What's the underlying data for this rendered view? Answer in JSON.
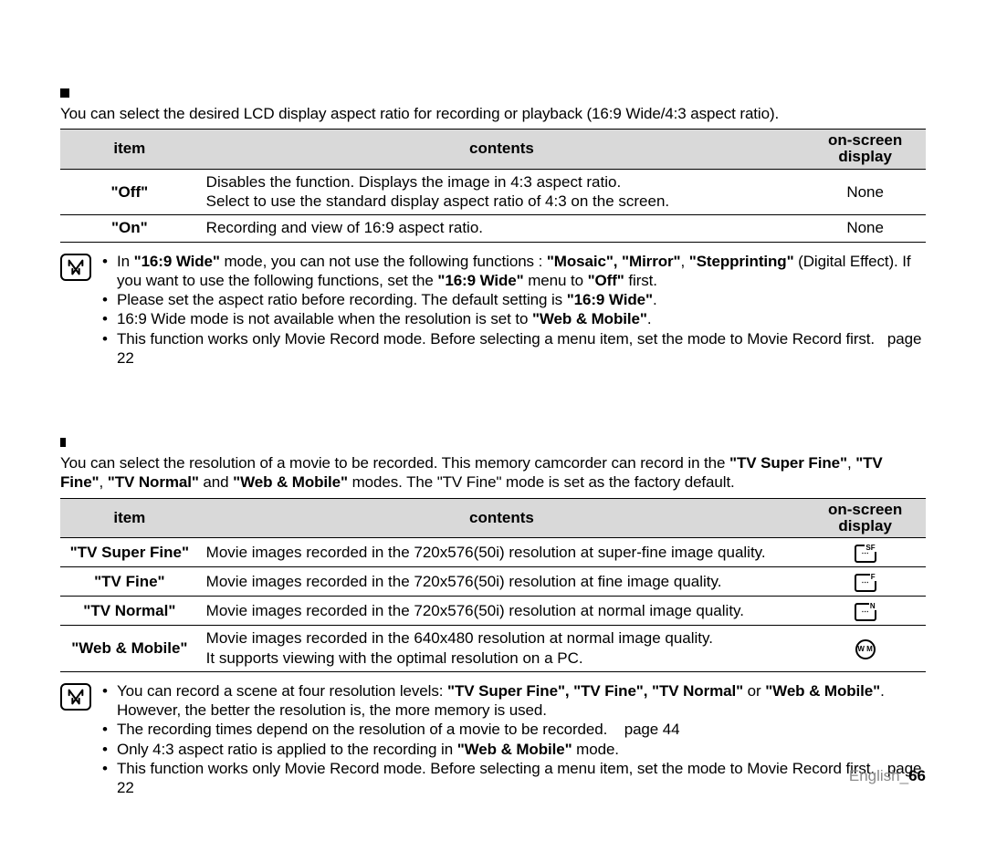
{
  "section1": {
    "intro": "You can select the desired LCD display aspect ratio for recording or playback (16:9 Wide/4:3 aspect ratio).",
    "headers": {
      "item": "item",
      "contents": "contents",
      "osd": "on-screen display"
    },
    "rows": [
      {
        "item": "\"Off\"",
        "contents": "Disables the function. Displays the image in 4:3 aspect ratio.\nSelect to use the standard display aspect ratio of 4:3 on the screen.",
        "osd": "None"
      },
      {
        "item": "\"On\"",
        "contents": "Recording and view of 16:9 aspect ratio.",
        "osd": "None"
      }
    ],
    "notes": [
      "In <b>\"16:9 Wide\"</b> mode, you can not use the following functions : <b>\"Mosaic\", \"Mirror\"</b>, <b>\"Stepprinting\"</b> (Digital Effect). If you want to use the following functions, set the <b>\"16:9 Wide\"</b> menu to <b>\"Off\"</b> first.",
      "Please set the aspect ratio before recording. The default setting is <b>\"16:9 Wide\"</b>.",
      "16:9 Wide mode is not available when the resolution is set to <b>\"Web & Mobile\"</b>.",
      "This function works only Movie Record mode. Before selecting a menu item, set the mode to Movie Record first.   page 22"
    ]
  },
  "section2": {
    "intro_html": "You can select the resolution of a movie to be recorded. This memory camcorder can record in the <b>\"TV Super Fine\"</b>, <b>\"TV Fine\"</b>, <b>\"TV Normal\"</b> and <b>\"Web & Mobile\"</b> modes. The \"TV Fine\" mode is set as the factory default.",
    "headers": {
      "item": "item",
      "contents": "contents",
      "osd": "on-screen display"
    },
    "rows": [
      {
        "item": "\"TV Super Fine\"",
        "contents": "Movie images recorded in the 720x576(50i) resolution at super-fine image quality.",
        "osd_icon": "SF"
      },
      {
        "item": "\"TV Fine\"",
        "contents": "Movie images recorded in the 720x576(50i) resolution at fine image quality.",
        "osd_icon": "F"
      },
      {
        "item": "\"TV Normal\"",
        "contents": "Movie images recorded in the 720x576(50i) resolution at normal image quality.",
        "osd_icon": "N"
      },
      {
        "item": "\"Web & Mobile\"",
        "contents": "Movie images recorded in the 640x480 resolution at normal image quality.\nIt supports viewing with the optimal resolution on a PC.",
        "osd_icon": "WM"
      }
    ],
    "notes": [
      "You can record a scene at four resolution levels: <b>\"TV Super Fine\", \"TV Fine\", \"TV Normal\"</b> or <b>\"Web & Mobile\"</b>. However, the better the resolution is, the more memory is used.",
      "The recording times depend on the resolution of a movie to be recorded.    page 44",
      "Only 4:3 aspect ratio is applied to the recording in <b>\"Web & Mobile\"</b> mode.",
      "This function works only Movie Record mode. Before selecting a menu item, set the mode to Movie Record first.   page 22"
    ]
  },
  "footer": {
    "label": "English_",
    "page": "66"
  }
}
